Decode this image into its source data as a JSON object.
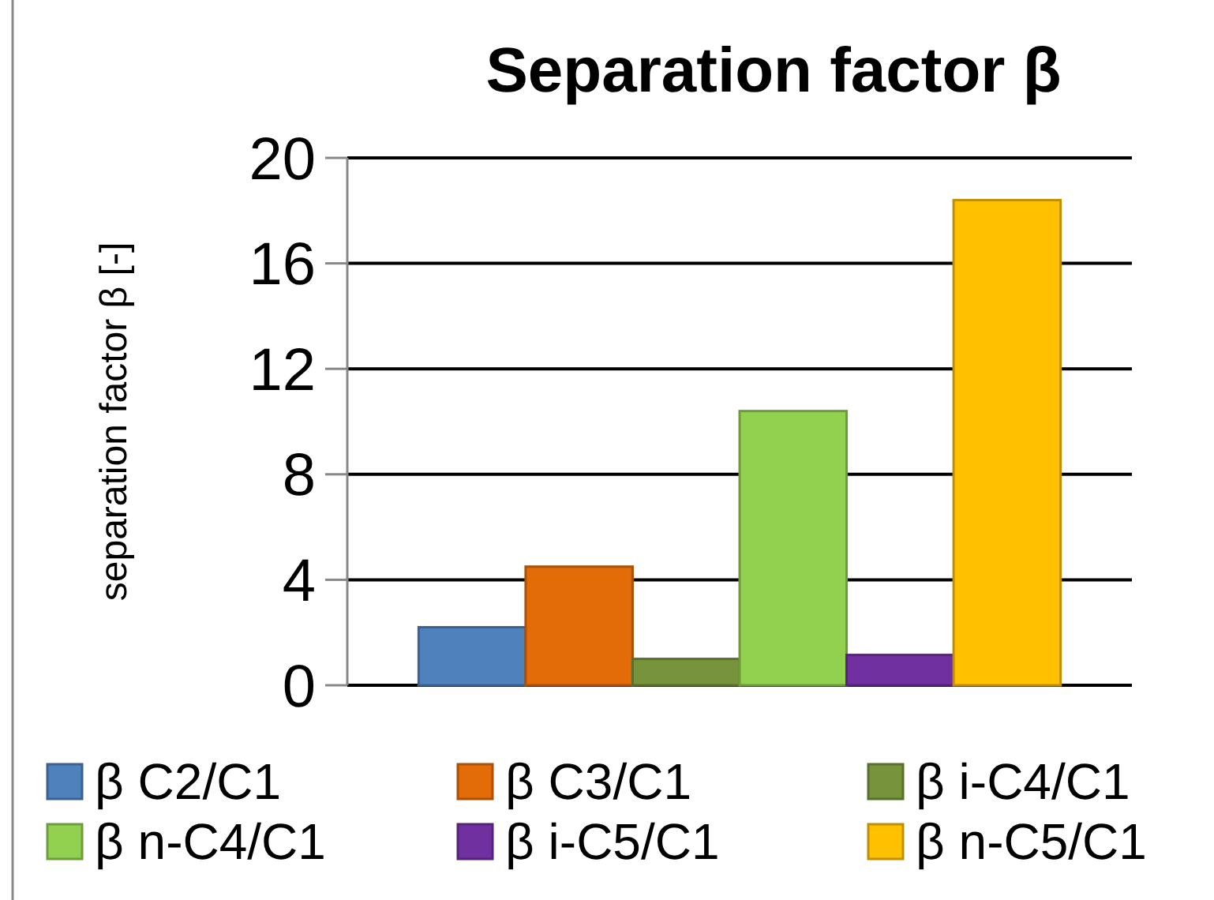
{
  "chart_data": {
    "type": "bar",
    "title": "Separation factor β",
    "ylabel": "separation factor β [-]",
    "categories": [
      null
    ],
    "series": [
      {
        "name": "β C2/C1",
        "color": "#4f81bd",
        "values": [
          2.2
        ]
      },
      {
        "name": "β C3/C1",
        "color": "#e36c09",
        "values": [
          4.5
        ]
      },
      {
        "name": "β i-C4/C1",
        "color": "#77933c",
        "values": [
          1.0
        ]
      },
      {
        "name": "β n-C4/C1",
        "color": "#92d050",
        "values": [
          10.4
        ]
      },
      {
        "name": "β i-C5/C1",
        "color": "#7030a0",
        "values": [
          1.15
        ]
      },
      {
        "name": "β n-C5/C1",
        "color": "#ffc000",
        "values": [
          18.4
        ]
      }
    ],
    "ylim": [
      0,
      20
    ],
    "yticks": [
      0,
      4,
      8,
      12,
      16,
      20
    ],
    "grid": "y",
    "legend": "bottom"
  }
}
